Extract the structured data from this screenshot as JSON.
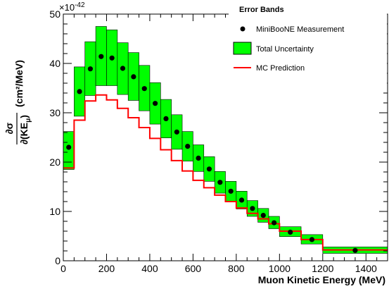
{
  "chart_data": {
    "type": "bar",
    "title": "",
    "xlabel": "Muon Kinetic Energy (MeV)",
    "ylabel": "(cm²/MeV)",
    "ylabel_fraction_top": "∂σ",
    "ylabel_fraction_bottom": "∂(KE",
    "ylabel_fraction_sub": "μ",
    "y_exponent_base": "×10",
    "y_exponent_power": "-42",
    "xlim": [
      0,
      1500
    ],
    "ylim": [
      0,
      50
    ],
    "x_ticks": [
      "0",
      "200",
      "400",
      "600",
      "800",
      "1000",
      "1200",
      "1400"
    ],
    "y_ticks": [
      "0",
      "10",
      "20",
      "30",
      "40",
      "50"
    ],
    "legend": {
      "title": "Error Bands",
      "placement": "top-right",
      "entries": [
        "MiniBooNE Measurement",
        "Total Uncertainty",
        "MC Prediction"
      ]
    },
    "bins": [
      {
        "lo": 0,
        "hi": 50,
        "center": 25,
        "data": 23.0,
        "err_lo": 18.5,
        "err_hi": 26.2,
        "mc": 18.8
      },
      {
        "lo": 50,
        "hi": 100,
        "center": 75,
        "data": 34.3,
        "err_lo": 29.3,
        "err_hi": 39.3,
        "mc": 28.5
      },
      {
        "lo": 100,
        "hi": 150,
        "center": 125,
        "data": 38.9,
        "err_lo": 33.5,
        "err_hi": 44.4,
        "mc": 32.4
      },
      {
        "lo": 150,
        "hi": 200,
        "center": 175,
        "data": 41.4,
        "err_lo": 35.5,
        "err_hi": 47.5,
        "mc": 33.6
      },
      {
        "lo": 200,
        "hi": 250,
        "center": 225,
        "data": 41.1,
        "err_lo": 35.5,
        "err_hi": 46.8,
        "mc": 32.6
      },
      {
        "lo": 250,
        "hi": 300,
        "center": 275,
        "data": 39.0,
        "err_lo": 33.7,
        "err_hi": 44.2,
        "mc": 30.9
      },
      {
        "lo": 300,
        "hi": 350,
        "center": 325,
        "data": 37.3,
        "err_lo": 32.5,
        "err_hi": 42.2,
        "mc": 29.0
      },
      {
        "lo": 350,
        "hi": 400,
        "center": 375,
        "data": 34.9,
        "err_lo": 30.4,
        "err_hi": 39.6,
        "mc": 27.0
      },
      {
        "lo": 400,
        "hi": 450,
        "center": 425,
        "data": 31.9,
        "err_lo": 27.7,
        "err_hi": 36.1,
        "mc": 24.8
      },
      {
        "lo": 450,
        "hi": 500,
        "center": 475,
        "data": 28.8,
        "err_lo": 24.9,
        "err_hi": 32.7,
        "mc": 22.5
      },
      {
        "lo": 500,
        "hi": 550,
        "center": 525,
        "data": 26.1,
        "err_lo": 22.6,
        "err_hi": 29.6,
        "mc": 20.3
      },
      {
        "lo": 550,
        "hi": 600,
        "center": 575,
        "data": 23.2,
        "err_lo": 20.2,
        "err_hi": 26.2,
        "mc": 18.2
      },
      {
        "lo": 600,
        "hi": 650,
        "center": 625,
        "data": 20.8,
        "err_lo": 18.1,
        "err_hi": 23.5,
        "mc": 16.3
      },
      {
        "lo": 650,
        "hi": 700,
        "center": 675,
        "data": 18.6,
        "err_lo": 16.1,
        "err_hi": 21.1,
        "mc": 14.8
      },
      {
        "lo": 700,
        "hi": 750,
        "center": 725,
        "data": 15.9,
        "err_lo": 13.7,
        "err_hi": 18.1,
        "mc": 13.3
      },
      {
        "lo": 750,
        "hi": 800,
        "center": 775,
        "data": 14.1,
        "err_lo": 12.1,
        "err_hi": 16.1,
        "mc": 12.0
      },
      {
        "lo": 800,
        "hi": 850,
        "center": 825,
        "data": 12.3,
        "err_lo": 10.5,
        "err_hi": 14.1,
        "mc": 10.7
      },
      {
        "lo": 850,
        "hi": 900,
        "center": 875,
        "data": 10.6,
        "err_lo": 9.0,
        "err_hi": 12.2,
        "mc": 9.6
      },
      {
        "lo": 900,
        "hi": 950,
        "center": 925,
        "data": 9.2,
        "err_lo": 7.8,
        "err_hi": 10.6,
        "mc": 8.5
      },
      {
        "lo": 950,
        "hi": 1000,
        "center": 975,
        "data": 7.7,
        "err_lo": 6.5,
        "err_hi": 9.0,
        "mc": 7.5
      },
      {
        "lo": 1000,
        "hi": 1100,
        "center": 1050,
        "data": 5.8,
        "err_lo": 4.9,
        "err_hi": 6.9,
        "mc": 6.0
      },
      {
        "lo": 1100,
        "hi": 1200,
        "center": 1150,
        "data": 4.3,
        "err_lo": 3.4,
        "err_hi": 5.3,
        "mc": 4.3
      },
      {
        "lo": 1200,
        "hi": 1500,
        "center": 1350,
        "data": 2.1,
        "err_lo": 1.5,
        "err_hi": 2.8,
        "mc": 2.2
      }
    ],
    "colors": {
      "band": "#00ff00",
      "band_edge": "#000000",
      "mc_line": "#ff0000",
      "marker": "#000000",
      "background": "#ffffff"
    }
  }
}
